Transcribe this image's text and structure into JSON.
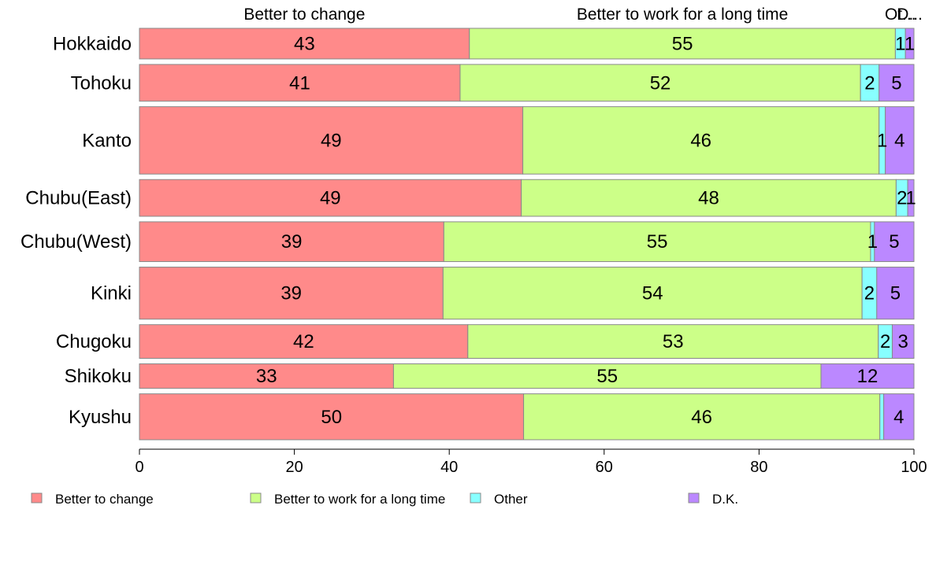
{
  "chart_data": {
    "type": "bar",
    "orientation": "horizontal",
    "stacked": true,
    "categories": [
      "Hokkaido",
      "Tohoku",
      "Kanto",
      "Chubu(East)",
      "Chubu(West)",
      "Kinki",
      "Chugoku",
      "Shikoku",
      "Kyushu"
    ],
    "series": [
      {
        "name": "Better to change",
        "color": "#ff8a8a",
        "values": [
          43,
          41,
          49,
          49,
          39,
          39,
          42,
          33,
          50
        ],
        "exact": [
          42.6,
          41.4,
          49.5,
          49.3,
          39.3,
          39.2,
          42.4,
          32.8,
          49.6
        ]
      },
      {
        "name": "Better to work for a long time",
        "color": "#ccff88",
        "values": [
          55,
          52,
          46,
          48,
          55,
          54,
          53,
          55,
          46
        ],
        "exact": [
          55.0,
          51.7,
          46.0,
          48.4,
          55.1,
          54.1,
          53.0,
          55.2,
          46.0
        ]
      },
      {
        "name": "Other",
        "color": "#88ffff",
        "values": [
          1,
          2,
          1,
          2,
          1,
          2,
          2,
          0,
          0
        ],
        "exact": [
          1.3,
          2.4,
          0.8,
          1.5,
          0.5,
          1.9,
          1.8,
          0.0,
          0.5
        ]
      },
      {
        "name": "D.K.",
        "color": "#bb88ff",
        "values": [
          1,
          5,
          4,
          1,
          5,
          5,
          3,
          12,
          4
        ],
        "exact": [
          1.1,
          4.5,
          3.7,
          0.8,
          5.1,
          4.8,
          2.8,
          12.0,
          3.9
        ]
      }
    ],
    "bar_weights": [
      1,
      1.2,
      2.2,
      1.2,
      1.3,
      1.7,
      1.1,
      0.8,
      1.5
    ],
    "segment_labels_visible": [
      [
        "43",
        "55",
        "1",
        "1"
      ],
      [
        "41",
        "52",
        "2",
        "5"
      ],
      [
        "49",
        "46",
        "1",
        "4"
      ],
      [
        "49",
        "48",
        "2",
        "1"
      ],
      [
        "39",
        "55",
        "1",
        "5"
      ],
      [
        "39",
        "54",
        "2",
        "5"
      ],
      [
        "42",
        "53",
        "2",
        "3"
      ],
      [
        "33",
        "55",
        "",
        "12"
      ],
      [
        "50",
        "46",
        "",
        "4"
      ]
    ],
    "top_labels": [
      "Better to change",
      "Better to work for a long time",
      "Ot...",
      "D..."
    ],
    "xlim": [
      0,
      100
    ],
    "xticks": [
      0,
      20,
      40,
      60,
      80,
      100
    ],
    "legend": {
      "placement": "bottom",
      "entries": [
        "Better to change",
        "Better to work for a long time",
        "Other",
        "D.K."
      ]
    },
    "grid": false,
    "title": "",
    "xlabel": "",
    "ylabel": ""
  }
}
